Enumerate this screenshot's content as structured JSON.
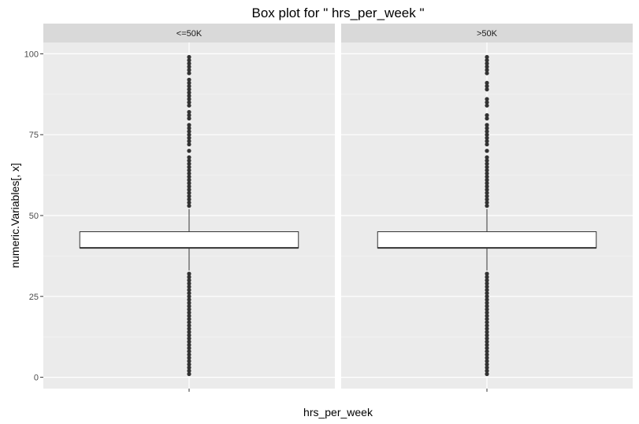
{
  "chart_data": {
    "type": "box",
    "title": "Box plot for \" hrs_per_week \"",
    "xlabel": "hrs_per_week",
    "ylabel": "numeric.Variables[, x]",
    "ylim": [
      -3.5,
      103.5
    ],
    "y_ticks": [
      0,
      25,
      50,
      75,
      100
    ],
    "y_tick_labels": [
      "0",
      "25",
      "50",
      "75",
      "100"
    ],
    "grid": true,
    "panels": [
      {
        "name": "<=50K",
        "stats": {
          "lower_whisker": 33,
          "q1": 40,
          "median": 40,
          "q3": 45,
          "upper_whisker": 52
        },
        "outliers": [
          1,
          2,
          3,
          4,
          5,
          6,
          7,
          8,
          9,
          10,
          11,
          12,
          13,
          14,
          15,
          16,
          17,
          18,
          19,
          20,
          21,
          22,
          23,
          24,
          25,
          26,
          27,
          28,
          29,
          30,
          31,
          32,
          53,
          54,
          55,
          56,
          57,
          58,
          59,
          60,
          61,
          62,
          63,
          64,
          65,
          66,
          67,
          68,
          70,
          72,
          73,
          74,
          75,
          76,
          77,
          78,
          80,
          81,
          82,
          84,
          85,
          86,
          87,
          88,
          89,
          90,
          91,
          92,
          94,
          95,
          96,
          97,
          98,
          99
        ]
      },
      {
        "name": ">50K",
        "stats": {
          "lower_whisker": 33,
          "q1": 40,
          "median": 40,
          "q3": 45,
          "upper_whisker": 52
        },
        "outliers": [
          1,
          2,
          3,
          4,
          5,
          6,
          7,
          8,
          9,
          10,
          11,
          12,
          13,
          14,
          15,
          16,
          17,
          18,
          19,
          20,
          21,
          22,
          23,
          24,
          25,
          26,
          27,
          28,
          29,
          30,
          31,
          32,
          53,
          54,
          55,
          56,
          57,
          58,
          59,
          60,
          61,
          62,
          63,
          64,
          65,
          66,
          67,
          68,
          70,
          72,
          73,
          74,
          75,
          76,
          77,
          78,
          80,
          81,
          84,
          85,
          86,
          89,
          90,
          91,
          94,
          95,
          96,
          97,
          98,
          99
        ]
      }
    ]
  },
  "colors": {
    "panel_bg": "#ebebeb",
    "strip_bg": "#d9d9d9",
    "grid_major": "#ffffff",
    "box_fill": "#ffffff",
    "box_line": "#333333",
    "outlier": "#333333",
    "tick": "#333333"
  }
}
